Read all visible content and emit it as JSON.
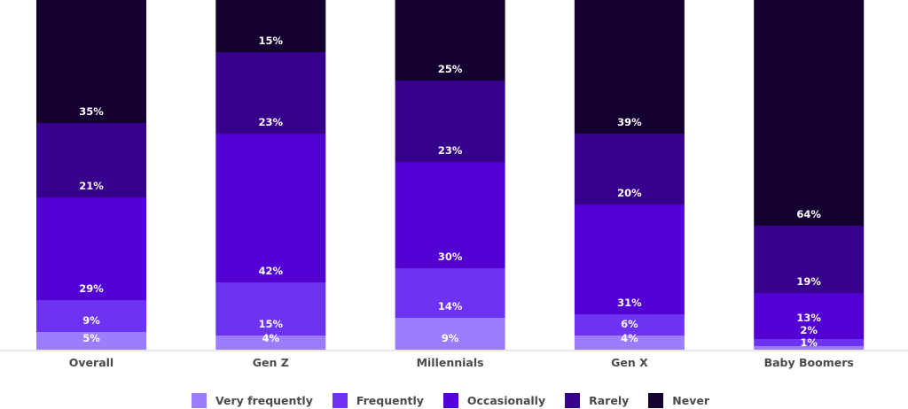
{
  "chart_data": {
    "type": "bar",
    "stacked": true,
    "categories": [
      "Overall",
      "Gen Z",
      "Millennials",
      "Gen X",
      "Baby Boomers"
    ],
    "series": [
      {
        "name": "Very frequently",
        "color": "#9C7CFF",
        "values": [
          5,
          4,
          9,
          4,
          1
        ]
      },
      {
        "name": "Frequently",
        "color": "#6E33F2",
        "values": [
          9,
          15,
          14,
          6,
          2
        ]
      },
      {
        "name": "Occasionally",
        "color": "#5200D4",
        "values": [
          29,
          42,
          30,
          31,
          13
        ]
      },
      {
        "name": "Rarely",
        "color": "#36008C",
        "values": [
          21,
          23,
          23,
          20,
          19
        ]
      },
      {
        "name": "Never",
        "color": "#130030",
        "values": [
          35,
          15,
          25,
          39,
          64
        ]
      }
    ],
    "value_suffix": "%",
    "ylim": [
      0,
      100
    ],
    "grid": false,
    "legend": "bottom"
  }
}
